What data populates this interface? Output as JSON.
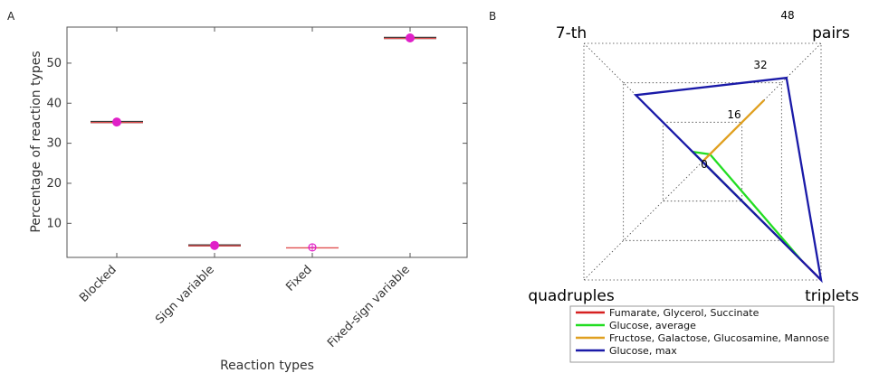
{
  "chart_data": [
    {
      "panel": "A",
      "type": "scatter",
      "xlabel": "Reaction types",
      "ylabel": "Percentage of reaction types",
      "ylim": [
        1.5,
        59
      ],
      "yticks": [
        10,
        20,
        30,
        40,
        50
      ],
      "categories": [
        "Blocked",
        "Sign variable",
        "Fixed",
        "Fixed-sign variable"
      ],
      "values": [
        35.3,
        4.5,
        4.0,
        56.3
      ],
      "marker_color": "#e020c8",
      "line_color": "#e05050",
      "grid": false
    },
    {
      "panel": "B",
      "type": "radar",
      "axes": [
        "pairs",
        "triplets",
        "quadruples",
        "7-th"
      ],
      "rings": [
        0,
        16,
        32,
        48
      ],
      "rmax": 48,
      "grid": true,
      "legend_position": "bottom-right",
      "series": [
        {
          "name": "Fumarate, Glycerol, Succinate",
          "color": "#d62020",
          "values": [
            0,
            48,
            0,
            0
          ]
        },
        {
          "name": "Glucose, average",
          "color": "#22dd22",
          "values": [
            3,
            40,
            0,
            4
          ]
        },
        {
          "name": "Fructose, Galactose, Glucosamine, Mannose",
          "color": "#e0a020",
          "values": [
            25,
            0,
            0,
            0
          ]
        },
        {
          "name": "Glucose, max",
          "color": "#1a1aa8",
          "values": [
            34,
            48,
            0,
            27
          ]
        }
      ]
    }
  ]
}
